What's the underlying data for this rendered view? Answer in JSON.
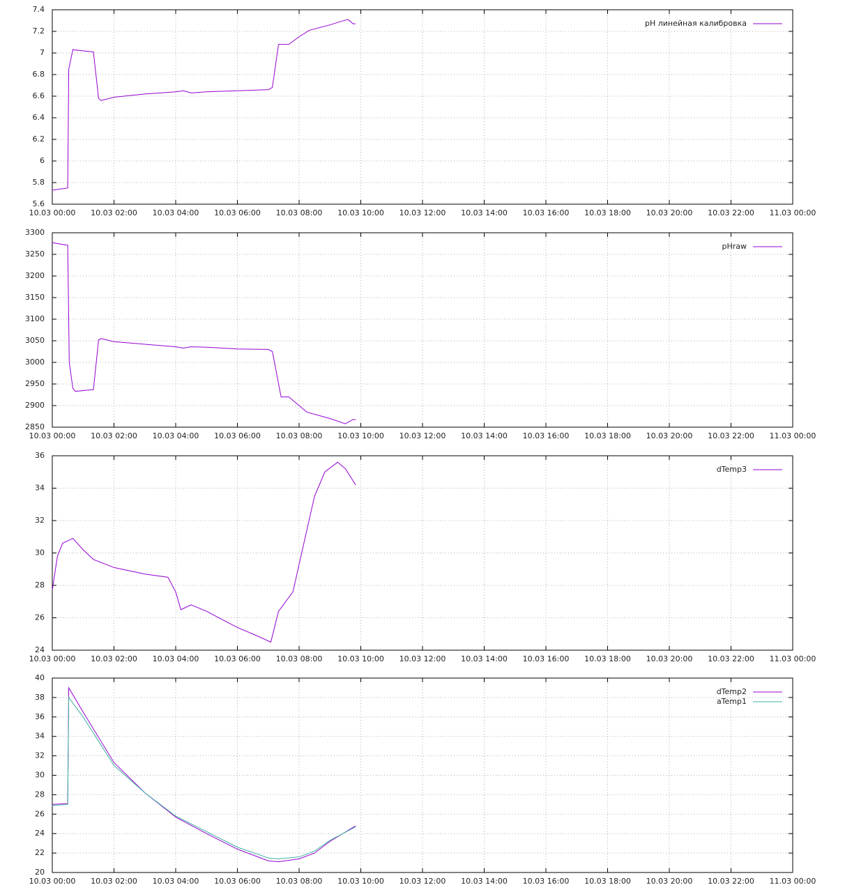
{
  "chart_data": [
    {
      "type": "line",
      "x": [
        "10.03 00:00",
        "10.03 00:30",
        "10.03 00:32",
        "10.03 00:40",
        "10.03 01:20",
        "10.03 01:30",
        "10.03 01:35",
        "10.03 02:00",
        "10.03 03:00",
        "10.03 04:00",
        "10.03 04:15",
        "10.03 04:30",
        "10.03 05:00",
        "10.03 06:00",
        "10.03 07:00",
        "10.03 07:08",
        "10.03 07:20",
        "10.03 07:40",
        "10.03 08:00",
        "10.03 08:20",
        "10.03 09:00",
        "10.03 09:20",
        "10.03 09:35",
        "10.03 09:45",
        "10.03 09:50"
      ],
      "series": [
        {
          "name": "pH линейная калибровка",
          "color": "#9400d3",
          "values": [
            5.73,
            5.75,
            6.85,
            7.03,
            7.01,
            6.58,
            6.56,
            6.59,
            6.62,
            6.64,
            6.65,
            6.63,
            6.64,
            6.65,
            6.66,
            6.68,
            7.08,
            7.08,
            7.15,
            7.21,
            7.26,
            7.29,
            7.31,
            7.27,
            7.27
          ]
        }
      ],
      "xlim": [
        "10.03 00:00",
        "11.03 00:00"
      ],
      "xticks": [
        "10.03 00:00",
        "10.03 02:00",
        "10.03 04:00",
        "10.03 06:00",
        "10.03 08:00",
        "10.03 10:00",
        "10.03 12:00",
        "10.03 14:00",
        "10.03 16:00",
        "10.03 18:00",
        "10.03 20:00",
        "10.03 22:00",
        "11.03 00:00"
      ],
      "ylim": [
        5.6,
        7.4
      ],
      "yticks": [
        5.6,
        5.8,
        6,
        6.2,
        6.4,
        6.6,
        6.8,
        7,
        7.2,
        7.4
      ],
      "grid": true,
      "legend": "top right"
    },
    {
      "type": "line",
      "x": [
        "10.03 00:00",
        "10.03 00:30",
        "10.03 00:33",
        "10.03 00:40",
        "10.03 00:45",
        "10.03 01:20",
        "10.03 01:30",
        "10.03 01:35",
        "10.03 02:00",
        "10.03 03:00",
        "10.03 04:00",
        "10.03 04:15",
        "10.03 04:30",
        "10.03 05:00",
        "10.03 06:00",
        "10.03 07:00",
        "10.03 07:08",
        "10.03 07:25",
        "10.03 07:40",
        "10.03 08:00",
        "10.03 08:15",
        "10.03 09:00",
        "10.03 09:30",
        "10.03 09:45",
        "10.03 09:50"
      ],
      "series": [
        {
          "name": "pHraw",
          "color": "#9400d3",
          "values": [
            3277,
            3271,
            3000,
            2940,
            2933,
            2937,
            3052,
            3055,
            3048,
            3042,
            3036,
            3033,
            3036,
            3035,
            3031,
            3030,
            3025,
            2920,
            2920,
            2900,
            2885,
            2870,
            2858,
            2868,
            2867
          ]
        }
      ],
      "xlim": [
        "10.03 00:00",
        "11.03 00:00"
      ],
      "xticks": [
        "10.03 00:00",
        "10.03 02:00",
        "10.03 04:00",
        "10.03 06:00",
        "10.03 08:00",
        "10.03 10:00",
        "10.03 12:00",
        "10.03 14:00",
        "10.03 16:00",
        "10.03 18:00",
        "10.03 20:00",
        "10.03 22:00",
        "11.03 00:00"
      ],
      "ylim": [
        2850,
        3300
      ],
      "yticks": [
        2850,
        2900,
        2950,
        3000,
        3050,
        3100,
        3150,
        3200,
        3250,
        3300
      ],
      "grid": true,
      "legend": "top right"
    },
    {
      "type": "line",
      "x": [
        "10.03 00:00",
        "10.03 00:10",
        "10.03 00:20",
        "10.03 00:40",
        "10.03 01:00",
        "10.03 01:20",
        "10.03 02:00",
        "10.03 03:00",
        "10.03 03:45",
        "10.03 04:00",
        "10.03 04:10",
        "10.03 04:30",
        "10.03 05:00",
        "10.03 06:00",
        "10.03 06:30",
        "10.03 07:05",
        "10.03 07:20",
        "10.03 07:48",
        "10.03 08:05",
        "10.03 08:30",
        "10.03 08:50",
        "10.03 09:15",
        "10.03 09:30",
        "10.03 09:50"
      ],
      "series": [
        {
          "name": "dTemp3",
          "color": "#9400d3",
          "values": [
            27.7,
            29.8,
            30.6,
            30.9,
            30.2,
            29.6,
            29.1,
            28.7,
            28.5,
            27.6,
            26.5,
            26.8,
            26.4,
            25.4,
            25.0,
            24.5,
            26.4,
            27.6,
            30.0,
            33.5,
            35.0,
            35.6,
            35.2,
            34.2
          ]
        }
      ],
      "xlim": [
        "10.03 00:00",
        "11.03 00:00"
      ],
      "xticks": [
        "10.03 00:00",
        "10.03 02:00",
        "10.03 04:00",
        "10.03 06:00",
        "10.03 08:00",
        "10.03 10:00",
        "10.03 12:00",
        "10.03 14:00",
        "10.03 16:00",
        "10.03 18:00",
        "10.03 20:00",
        "10.03 22:00",
        "11.03 00:00"
      ],
      "ylim": [
        24,
        36
      ],
      "yticks": [
        24,
        26,
        28,
        30,
        32,
        34,
        36
      ],
      "grid": true,
      "legend": "top right"
    },
    {
      "type": "line",
      "x": [
        "10.03 00:00",
        "10.03 00:30",
        "10.03 00:32",
        "10.03 01:00",
        "10.03 02:00",
        "10.03 03:00",
        "10.03 04:00",
        "10.03 05:00",
        "10.03 06:00",
        "10.03 07:00",
        "10.03 07:20",
        "10.03 08:00",
        "10.03 08:30",
        "10.03 09:00",
        "10.03 09:50"
      ],
      "series": [
        {
          "name": "dTemp2",
          "color": "#9400d3",
          "values": [
            27.0,
            27.1,
            39.0,
            36.5,
            31.3,
            28.2,
            25.7,
            24.0,
            22.4,
            21.2,
            21.1,
            21.4,
            22.0,
            23.2,
            24.8
          ]
        },
        {
          "name": "aTemp1",
          "color": "#3cb0a0",
          "values": [
            26.9,
            27.0,
            38.0,
            36.0,
            31.0,
            28.2,
            25.8,
            24.2,
            22.6,
            21.5,
            21.4,
            21.6,
            22.2,
            23.3,
            24.7
          ]
        }
      ],
      "xlim": [
        "10.03 00:00",
        "11.03 00:00"
      ],
      "xticks": [
        "10.03 00:00",
        "10.03 02:00",
        "10.03 04:00",
        "10.03 06:00",
        "10.03 08:00",
        "10.03 10:00",
        "10.03 12:00",
        "10.03 14:00",
        "10.03 16:00",
        "10.03 18:00",
        "10.03 20:00",
        "10.03 22:00",
        "11.03 00:00"
      ],
      "ylim": [
        20,
        40
      ],
      "yticks": [
        20,
        22,
        24,
        26,
        28,
        30,
        32,
        34,
        36,
        38,
        40
      ],
      "grid": true,
      "legend": "top right"
    }
  ]
}
